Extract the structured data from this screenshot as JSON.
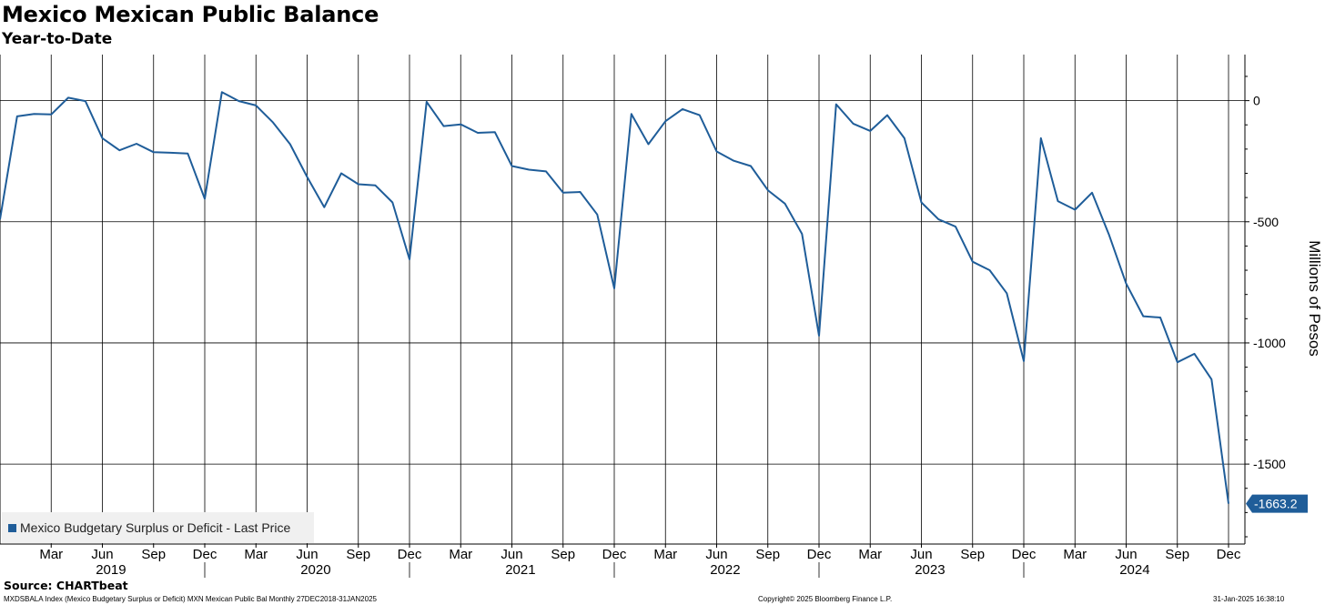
{
  "title": "Mexico Mexican Public Balance",
  "subtitle": "Year-to-Date",
  "source": "Source: CHARTbeat",
  "footer": {
    "left": "MXDSBALA Index (Mexico Budgetary Surplus or Deficit) MXN Mexican Public Bal  Monthly 27DEC2018-31JAN2025",
    "center": "Copyright© 2025 Bloomberg Finance L.P.",
    "right": "31-Jan-2025 16:38:10"
  },
  "legend": {
    "label": "Mexico Budgetary Surplus or Deficit - Last Price",
    "position": "bottom-left"
  },
  "colors": {
    "line": "#1f5d99",
    "grid": "#000000"
  },
  "chart_data": {
    "type": "line",
    "ylabel": "Millions of Pesos",
    "ylim": [
      -1830,
      190
    ],
    "y_axis_side": "right",
    "yticks": [
      0,
      -500,
      -1000,
      -1500
    ],
    "ytick_labels": [
      "0",
      "-500",
      "-1000",
      "-1500"
    ],
    "x_start": "2018-12",
    "x_end": "2024-12",
    "month_ticks": [
      "Mar",
      "Jun",
      "Sep",
      "Dec"
    ],
    "year_labels": [
      "2019",
      "2020",
      "2021",
      "2022",
      "2023",
      "2024"
    ],
    "grid": true,
    "last_value_label": "-1663.2",
    "series": [
      {
        "name": "Mexico Budgetary Surplus or Deficit - Last Price",
        "x": [
          "2018-12",
          "2019-01",
          "2019-02",
          "2019-03",
          "2019-04",
          "2019-05",
          "2019-06",
          "2019-07",
          "2019-08",
          "2019-09",
          "2019-10",
          "2019-11",
          "2019-12",
          "2020-01",
          "2020-02",
          "2020-03",
          "2020-04",
          "2020-05",
          "2020-06",
          "2020-07",
          "2020-08",
          "2020-09",
          "2020-10",
          "2020-11",
          "2020-12",
          "2021-01",
          "2021-02",
          "2021-03",
          "2021-04",
          "2021-05",
          "2021-06",
          "2021-07",
          "2021-08",
          "2021-09",
          "2021-10",
          "2021-11",
          "2021-12",
          "2022-01",
          "2022-02",
          "2022-03",
          "2022-04",
          "2022-05",
          "2022-06",
          "2022-07",
          "2022-08",
          "2022-09",
          "2022-10",
          "2022-11",
          "2022-12",
          "2023-01",
          "2023-02",
          "2023-03",
          "2023-04",
          "2023-05",
          "2023-06",
          "2023-07",
          "2023-08",
          "2023-09",
          "2023-10",
          "2023-11",
          "2023-12",
          "2024-01",
          "2024-02",
          "2024-03",
          "2024-04",
          "2024-05",
          "2024-06",
          "2024-07",
          "2024-08",
          "2024-09",
          "2024-10",
          "2024-11",
          "2024-12"
        ],
        "values": [
          -490,
          -65,
          -55,
          -57,
          12,
          -2,
          -155,
          -205,
          -178,
          -213,
          -215,
          -218,
          -405,
          35,
          -2,
          -20,
          -90,
          -180,
          -315,
          -440,
          -300,
          -345,
          -350,
          -420,
          -655,
          -5,
          -105,
          -98,
          -133,
          -130,
          -270,
          -285,
          -292,
          -380,
          -377,
          -470,
          -775,
          -55,
          -180,
          -85,
          -35,
          -60,
          -210,
          -248,
          -270,
          -370,
          -425,
          -550,
          -970,
          -15,
          -95,
          -125,
          -60,
          -155,
          -420,
          -490,
          -520,
          -665,
          -700,
          -795,
          -1075,
          -155,
          -415,
          -450,
          -380,
          -555,
          -755,
          -890,
          -895,
          -1080,
          -1045,
          -1150,
          -1663.2
        ]
      }
    ]
  }
}
